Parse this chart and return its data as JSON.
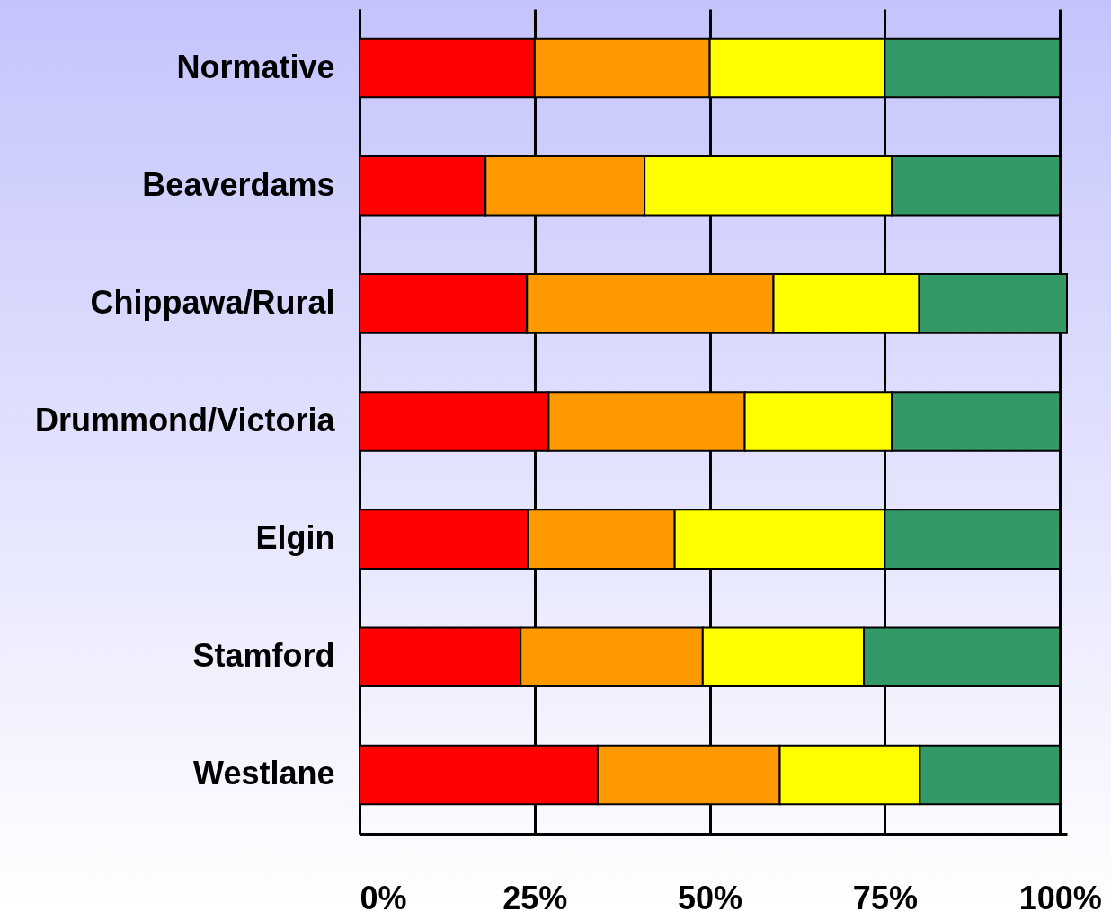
{
  "chart_data": {
    "type": "bar",
    "orientation": "horizontal",
    "stacked": true,
    "grid": "x",
    "categories": [
      "Normative",
      "Beaverdams",
      "Chippawa/Rural",
      "Drummond/Victoria",
      "Elgin",
      "Stamford",
      "Westlane"
    ],
    "series": [
      {
        "color": "#ff0000",
        "values": [
          25,
          18,
          23.9,
          27,
          24,
          23,
          34
        ]
      },
      {
        "color": "#ff9900",
        "values": [
          25,
          22.7,
          35.2,
          28,
          21,
          26,
          26
        ]
      },
      {
        "color": "#ffff00",
        "values": [
          25,
          35.3,
          20.8,
          21,
          30,
          23,
          20
        ]
      },
      {
        "color": "#339966",
        "values": [
          25,
          24,
          21.1,
          24,
          25,
          28,
          20
        ]
      }
    ],
    "xlim": [
      0,
      101
    ],
    "xticks": [
      {
        "value": 0,
        "label": "0%"
      },
      {
        "value": 25,
        "label": "25%"
      },
      {
        "value": 50,
        "label": "50%"
      },
      {
        "value": 75,
        "label": "75%"
      },
      {
        "value": 100,
        "label": "100%"
      }
    ]
  }
}
